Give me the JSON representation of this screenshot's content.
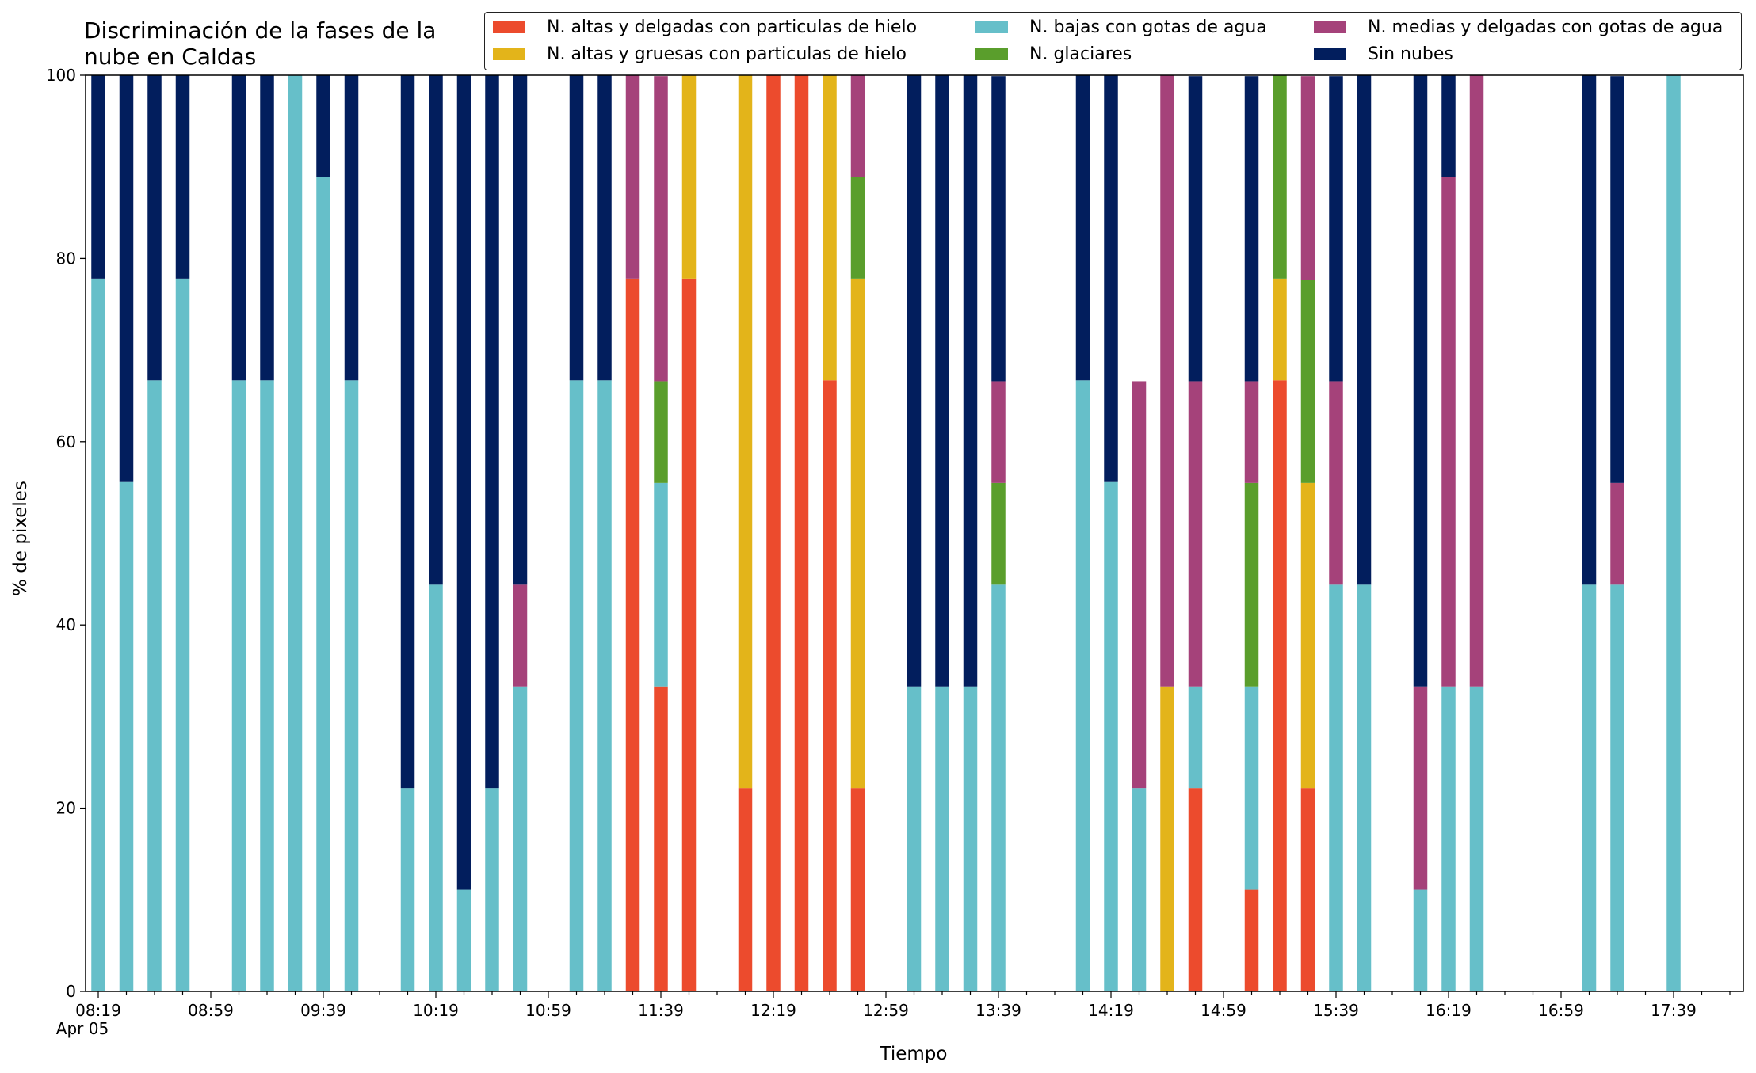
{
  "chart_data": {
    "type": "bar",
    "stacked": true,
    "title": "Discriminación de la fases de la\nnube en Caldas",
    "xlabel": "Tiempo",
    "ylabel": "% de pixeles",
    "ylim": [
      0,
      100
    ],
    "yticks": [
      0,
      20,
      40,
      60,
      80,
      100
    ],
    "grid": false,
    "legend_placement": "top-right",
    "x_start": "08:19",
    "x_step_minutes": 10,
    "x_tick_labels": [
      "08:19\nApr 05",
      "08:59",
      "09:39",
      "10:19",
      "10:59",
      "11:39",
      "12:19",
      "12:59",
      "13:39",
      "14:19",
      "14:59",
      "15:39",
      "16:19",
      "16:59",
      "17:39"
    ],
    "categories": [
      "08:19",
      "08:29",
      "08:39",
      "08:49",
      "08:59",
      "09:09",
      "09:19",
      "09:29",
      "09:39",
      "09:49",
      "09:59",
      "10:09",
      "10:19",
      "10:29",
      "10:39",
      "10:49",
      "10:59",
      "11:09",
      "11:19",
      "11:29",
      "11:39",
      "11:49",
      "11:59",
      "12:09",
      "12:19",
      "12:29",
      "12:39",
      "12:49",
      "12:59",
      "13:09",
      "13:19",
      "13:29",
      "13:39",
      "13:49",
      "13:59",
      "14:09",
      "14:19",
      "14:29",
      "14:39",
      "14:49",
      "14:59",
      "15:09",
      "15:19",
      "15:29",
      "15:39",
      "15:49",
      "15:59",
      "16:09",
      "16:19",
      "16:29",
      "16:39",
      "16:49",
      "16:59",
      "17:09",
      "17:19",
      "17:29",
      "17:39"
    ],
    "series": [
      {
        "name": "N. altas y delgadas con particulas de hielo",
        "color": "#ec4b2d",
        "values": [
          0,
          0,
          0,
          0,
          0,
          0,
          0,
          0,
          0,
          0,
          0,
          0,
          0,
          0,
          0,
          0,
          0,
          0,
          0,
          77.8,
          33.3,
          77.8,
          0,
          22.2,
          100,
          100,
          66.7,
          22.2,
          0,
          0,
          0,
          0,
          0,
          0,
          0,
          0,
          0,
          0,
          0,
          22.2,
          0,
          11.1,
          66.7,
          22.2,
          0,
          0,
          0,
          0,
          0,
          0,
          0,
          0,
          0,
          0,
          0,
          0,
          0
        ]
      },
      {
        "name": "N. altas y gruesas con particulas de hielo",
        "color": "#e3b41a",
        "values": [
          0,
          0,
          0,
          0,
          0,
          0,
          0,
          0,
          0,
          0,
          0,
          0,
          0,
          0,
          0,
          0,
          0,
          0,
          0,
          0,
          0,
          22.2,
          0,
          77.8,
          0,
          0,
          33.3,
          55.6,
          0,
          0,
          0,
          0,
          0,
          0,
          0,
          0,
          0,
          0,
          33.3,
          0,
          0,
          0,
          11.1,
          33.3,
          0,
          0,
          0,
          0,
          0,
          0,
          0,
          0,
          0,
          0,
          0,
          0,
          0
        ]
      },
      {
        "name": "N. bajas con gotas de agua",
        "color": "#66bfc9",
        "values": [
          77.8,
          55.6,
          66.7,
          77.8,
          0,
          66.7,
          66.7,
          100,
          88.9,
          66.7,
          0,
          22.2,
          44.4,
          11.1,
          22.2,
          33.3,
          0,
          66.7,
          66.7,
          0,
          22.2,
          0,
          0,
          0,
          0,
          0,
          0,
          0,
          0,
          33.3,
          33.3,
          33.3,
          44.4,
          0,
          0,
          66.7,
          55.6,
          22.2,
          0,
          11.1,
          0,
          22.2,
          0,
          0,
          44.4,
          44.4,
          0,
          11.1,
          33.3,
          33.3,
          0,
          0,
          0,
          44.4,
          44.4,
          0,
          100
        ]
      },
      {
        "name": "N. glaciares",
        "color": "#5a9e2c",
        "values": [
          0,
          0,
          0,
          0,
          0,
          0,
          0,
          0,
          0,
          0,
          0,
          0,
          0,
          0,
          0,
          0,
          0,
          0,
          0,
          0,
          11.1,
          0,
          0,
          0,
          0,
          0,
          0,
          11.1,
          0,
          0,
          0,
          0,
          11.1,
          0,
          0,
          0,
          0,
          0,
          0,
          0,
          0,
          22.2,
          22.2,
          22.2,
          0,
          0,
          0,
          0,
          0,
          0,
          0,
          0,
          0,
          0,
          0,
          0,
          0
        ]
      },
      {
        "name": "N. medias y delgadas con gotas de agua",
        "color": "#a5427a",
        "values": [
          0,
          0,
          0,
          0,
          0,
          0,
          0,
          0,
          0,
          0,
          0,
          0,
          0,
          0,
          0,
          11.1,
          0,
          0,
          0,
          22.2,
          33.3,
          0,
          0,
          0,
          0,
          0,
          0,
          11.1,
          0,
          0,
          0,
          0,
          11.1,
          0,
          0,
          0,
          0,
          44.4,
          66.7,
          33.3,
          0,
          11.1,
          0,
          22.2,
          22.2,
          0,
          0,
          22.2,
          55.6,
          66.7,
          0,
          0,
          0,
          0,
          11.1,
          0,
          0
        ]
      },
      {
        "name": "Sin nubes",
        "color": "#021e5d",
        "values": [
          22.2,
          44.4,
          33.3,
          22.2,
          0,
          33.3,
          33.3,
          0,
          11.1,
          33.3,
          0,
          77.8,
          55.6,
          88.9,
          77.8,
          55.6,
          0,
          33.3,
          33.3,
          0,
          0,
          0,
          0,
          0,
          0,
          0,
          0,
          0,
          0,
          66.7,
          66.7,
          66.7,
          33.3,
          0,
          0,
          33.3,
          44.4,
          0,
          0,
          33.3,
          0,
          33.3,
          0,
          0,
          33.3,
          55.6,
          0,
          66.7,
          11.1,
          0,
          0,
          0,
          0,
          55.6,
          44.4,
          0,
          0
        ]
      }
    ]
  }
}
